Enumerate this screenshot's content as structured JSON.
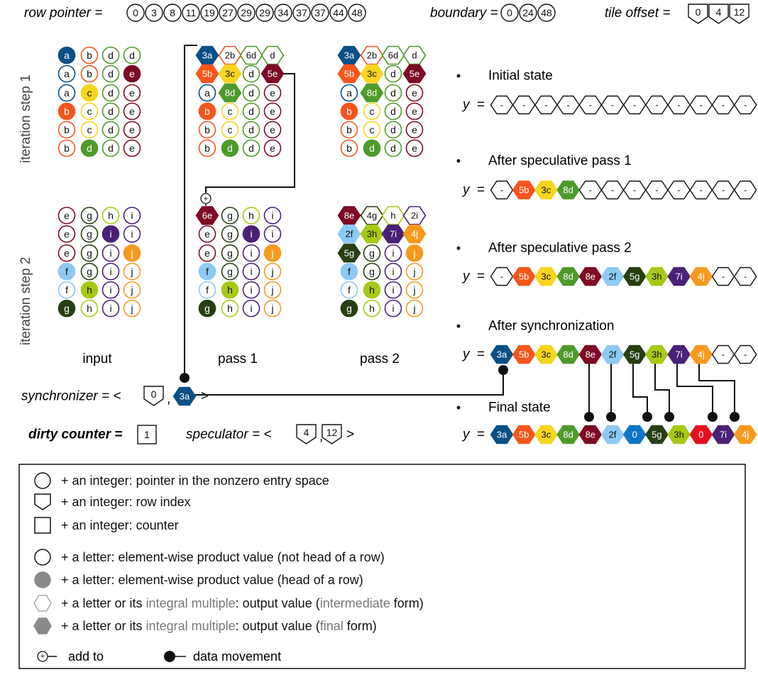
{
  "colors": {
    "a": "#0a4f86",
    "b": "#f4561d",
    "c": "#f8d51f",
    "d": "#4e9a2a",
    "e": "#7d0b25",
    "f": "#8ccaf4",
    "g": "#273f13",
    "h": "#a7c914",
    "i": "#4a2177",
    "j": "#f59a1f",
    "zero_final": "#0c76c9",
    "zero_red": "#e5101f",
    "gray": "#8a8a8a"
  },
  "header": {
    "row_pointer_label": "row pointer =",
    "row_pointer": [
      "0",
      "3",
      "8",
      "11",
      "19",
      "27",
      "29",
      "29",
      "34",
      "37",
      "37",
      "44",
      "48"
    ],
    "boundary_label": "boundary =",
    "boundary": [
      "0",
      "24",
      "48"
    ],
    "tile_offset_label": "tile offset =",
    "tile_offset": [
      "0",
      "4",
      "12"
    ]
  },
  "side_labels": {
    "step1": "iteration step 1",
    "step2": "iteration step 2"
  },
  "col_labels": {
    "input": "input",
    "pass1": "pass 1",
    "pass2": "pass 2"
  },
  "grids": {
    "input_step1": [
      [
        [
          "a",
          "H"
        ],
        [
          "b",
          "o"
        ],
        [
          "d",
          "o"
        ],
        [
          "d",
          "o"
        ]
      ],
      [
        [
          "a",
          "o"
        ],
        [
          "b",
          "o"
        ],
        [
          "d",
          "o"
        ],
        [
          "e",
          "H"
        ]
      ],
      [
        [
          "a",
          "o"
        ],
        [
          "c",
          "H"
        ],
        [
          "d",
          "o"
        ],
        [
          "e",
          "o"
        ]
      ],
      [
        [
          "b",
          "H"
        ],
        [
          "c",
          "o"
        ],
        [
          "d",
          "o"
        ],
        [
          "e",
          "o"
        ]
      ],
      [
        [
          "b",
          "o"
        ],
        [
          "c",
          "o"
        ],
        [
          "d",
          "o"
        ],
        [
          "e",
          "o"
        ]
      ],
      [
        [
          "b",
          "o"
        ],
        [
          "d",
          "H"
        ],
        [
          "d",
          "o"
        ],
        [
          "e",
          "o"
        ]
      ]
    ],
    "pass1_step1": [
      [
        [
          "3a",
          "F",
          "a"
        ],
        [
          "2b",
          "X",
          "b"
        ],
        [
          "6d",
          "X",
          "d"
        ],
        [
          "d",
          "X",
          "d"
        ]
      ],
      [
        [
          "5b",
          "F",
          "b"
        ],
        [
          "3c",
          "F",
          "c"
        ],
        [
          "d",
          "o"
        ],
        [
          "5e",
          "F",
          "e"
        ]
      ],
      [
        [
          "a",
          "o"
        ],
        [
          "8d",
          "F",
          "d"
        ],
        [
          "d",
          "o"
        ],
        [
          "e",
          "o"
        ]
      ],
      [
        [
          "b",
          "H"
        ],
        [
          "c",
          "o"
        ],
        [
          "d",
          "o"
        ],
        [
          "e",
          "o"
        ]
      ],
      [
        [
          "b",
          "o"
        ],
        [
          "c",
          "o"
        ],
        [
          "d",
          "o"
        ],
        [
          "e",
          "o"
        ]
      ],
      [
        [
          "b",
          "o"
        ],
        [
          "d",
          "H"
        ],
        [
          "d",
          "o"
        ],
        [
          "e",
          "o"
        ]
      ]
    ],
    "pass2_step1": [
      [
        [
          "3a",
          "F",
          "a"
        ],
        [
          "2b",
          "X",
          "b"
        ],
        [
          "6d",
          "X",
          "d"
        ],
        [
          "d",
          "X",
          "d"
        ]
      ],
      [
        [
          "5b",
          "F",
          "b"
        ],
        [
          "3c",
          "F",
          "c"
        ],
        [
          "d",
          "o"
        ],
        [
          "5e",
          "F",
          "e"
        ]
      ],
      [
        [
          "a",
          "o"
        ],
        [
          "8d",
          "F",
          "d"
        ],
        [
          "d",
          "o"
        ],
        [
          "e",
          "o"
        ]
      ],
      [
        [
          "b",
          "H"
        ],
        [
          "c",
          "o"
        ],
        [
          "d",
          "o"
        ],
        [
          "e",
          "o"
        ]
      ],
      [
        [
          "b",
          "o"
        ],
        [
          "c",
          "o"
        ],
        [
          "d",
          "o"
        ],
        [
          "e",
          "o"
        ]
      ],
      [
        [
          "b",
          "o"
        ],
        [
          "d",
          "H"
        ],
        [
          "d",
          "o"
        ],
        [
          "e",
          "o"
        ]
      ]
    ],
    "input_step2": [
      [
        [
          "e",
          "o"
        ],
        [
          "g",
          "o"
        ],
        [
          "h",
          "o"
        ],
        [
          "i",
          "o"
        ]
      ],
      [
        [
          "e",
          "o"
        ],
        [
          "g",
          "o"
        ],
        [
          "i",
          "H"
        ],
        [
          "i",
          "o"
        ]
      ],
      [
        [
          "e",
          "o"
        ],
        [
          "g",
          "o"
        ],
        [
          "i",
          "o"
        ],
        [
          "j",
          "H"
        ]
      ],
      [
        [
          "f",
          "H"
        ],
        [
          "g",
          "o"
        ],
        [
          "i",
          "o"
        ],
        [
          "j",
          "o"
        ]
      ],
      [
        [
          "f",
          "o"
        ],
        [
          "h",
          "H"
        ],
        [
          "i",
          "o"
        ],
        [
          "j",
          "o"
        ]
      ],
      [
        [
          "g",
          "H"
        ],
        [
          "h",
          "o"
        ],
        [
          "i",
          "o"
        ],
        [
          "j",
          "o"
        ]
      ]
    ],
    "pass1_step2": [
      [
        [
          "6e",
          "F",
          "e"
        ],
        [
          "g",
          "o"
        ],
        [
          "h",
          "o"
        ],
        [
          "i",
          "o"
        ]
      ],
      [
        [
          "e",
          "o"
        ],
        [
          "g",
          "o"
        ],
        [
          "i",
          "H"
        ],
        [
          "i",
          "o"
        ]
      ],
      [
        [
          "e",
          "o"
        ],
        [
          "g",
          "o"
        ],
        [
          "i",
          "o"
        ],
        [
          "j",
          "H"
        ]
      ],
      [
        [
          "f",
          "H"
        ],
        [
          "g",
          "o"
        ],
        [
          "i",
          "o"
        ],
        [
          "j",
          "o"
        ]
      ],
      [
        [
          "f",
          "o"
        ],
        [
          "h",
          "H"
        ],
        [
          "i",
          "o"
        ],
        [
          "j",
          "o"
        ]
      ],
      [
        [
          "g",
          "H"
        ],
        [
          "h",
          "o"
        ],
        [
          "i",
          "o"
        ],
        [
          "j",
          "o"
        ]
      ]
    ],
    "pass2_step2": [
      [
        [
          "8e",
          "F",
          "e"
        ],
        [
          "4g",
          "X",
          "g"
        ],
        [
          "h",
          "X",
          "h"
        ],
        [
          "2i",
          "X",
          "i"
        ]
      ],
      [
        [
          "2f",
          "F",
          "f"
        ],
        [
          "3h",
          "F",
          "h"
        ],
        [
          "7i",
          "F",
          "i"
        ],
        [
          "4j",
          "F",
          "j"
        ]
      ],
      [
        [
          "5g",
          "F",
          "g"
        ],
        [
          "g",
          "o"
        ],
        [
          "i",
          "o"
        ],
        [
          "j",
          "H"
        ]
      ],
      [
        [
          "f",
          "H"
        ],
        [
          "g",
          "o"
        ],
        [
          "i",
          "o"
        ],
        [
          "j",
          "o"
        ]
      ],
      [
        [
          "f",
          "o"
        ],
        [
          "h",
          "H"
        ],
        [
          "i",
          "o"
        ],
        [
          "j",
          "o"
        ]
      ],
      [
        [
          "g",
          "H"
        ],
        [
          "h",
          "o"
        ],
        [
          "i",
          "o"
        ],
        [
          "j",
          "o"
        ]
      ]
    ]
  },
  "states": [
    {
      "title": "Initial state",
      "y_label": "y",
      "cells": [
        [
          "-",
          "X",
          "k"
        ],
        [
          "-",
          "X",
          "k"
        ],
        [
          "-",
          "X",
          "k"
        ],
        [
          "-",
          "X",
          "k"
        ],
        [
          "-",
          "X",
          "k"
        ],
        [
          "-",
          "X",
          "k"
        ],
        [
          "-",
          "X",
          "k"
        ],
        [
          "-",
          "X",
          "k"
        ],
        [
          "-",
          "X",
          "k"
        ],
        [
          "-",
          "X",
          "k"
        ],
        [
          "-",
          "X",
          "k"
        ],
        [
          "-",
          "X",
          "k"
        ]
      ]
    },
    {
      "title": "After speculative pass 1",
      "y_label": "y",
      "cells": [
        [
          "-",
          "X",
          "k"
        ],
        [
          "5b",
          "F",
          "b"
        ],
        [
          "3c",
          "F",
          "c"
        ],
        [
          "8d",
          "F",
          "d"
        ],
        [
          "-",
          "X",
          "k"
        ],
        [
          "-",
          "X",
          "k"
        ],
        [
          "-",
          "X",
          "k"
        ],
        [
          "-",
          "X",
          "k"
        ],
        [
          "-",
          "X",
          "k"
        ],
        [
          "-",
          "X",
          "k"
        ],
        [
          "-",
          "X",
          "k"
        ],
        [
          "-",
          "X",
          "k"
        ]
      ]
    },
    {
      "title": "After speculative pass 2",
      "y_label": "y",
      "cells": [
        [
          "-",
          "X",
          "k"
        ],
        [
          "5b",
          "F",
          "b"
        ],
        [
          "3c",
          "F",
          "c"
        ],
        [
          "8d",
          "F",
          "d"
        ],
        [
          "8e",
          "F",
          "e"
        ],
        [
          "2f",
          "F",
          "f"
        ],
        [
          "5g",
          "F",
          "g"
        ],
        [
          "3h",
          "F",
          "h"
        ],
        [
          "7i",
          "F",
          "i"
        ],
        [
          "4j",
          "F",
          "j"
        ],
        [
          "-",
          "X",
          "k"
        ],
        [
          "-",
          "X",
          "k"
        ]
      ]
    },
    {
      "title": "After synchronization",
      "y_label": "y",
      "cells": [
        [
          "3a",
          "F",
          "a"
        ],
        [
          "5b",
          "F",
          "b"
        ],
        [
          "3c",
          "F",
          "c"
        ],
        [
          "8d",
          "F",
          "d"
        ],
        [
          "8e",
          "F",
          "e"
        ],
        [
          "2f",
          "F",
          "f"
        ],
        [
          "5g",
          "F",
          "g"
        ],
        [
          "3h",
          "F",
          "h"
        ],
        [
          "7i",
          "F",
          "i"
        ],
        [
          "4j",
          "F",
          "j"
        ],
        [
          "-",
          "X",
          "k"
        ],
        [
          "-",
          "X",
          "k"
        ]
      ]
    },
    {
      "title": "Final state",
      "y_label": "y",
      "cells": [
        [
          "3a",
          "F",
          "a"
        ],
        [
          "5b",
          "F",
          "b"
        ],
        [
          "3c",
          "F",
          "c"
        ],
        [
          "8d",
          "F",
          "d"
        ],
        [
          "8e",
          "F",
          "e"
        ],
        [
          "2f",
          "F",
          "f"
        ],
        [
          "0",
          "F",
          "zero_final"
        ],
        [
          "5g",
          "F",
          "g"
        ],
        [
          "3h",
          "F",
          "h"
        ],
        [
          "0",
          "F",
          "zero_red"
        ],
        [
          "7i",
          "F",
          "i"
        ],
        [
          "4j",
          "F",
          "j"
        ]
      ]
    }
  ],
  "bullet": "•",
  "synchronizer": {
    "label": "synchronizer = <",
    "row_index": "0",
    "comma": ",",
    "value": "3a",
    "close": ">"
  },
  "dirty_counter": {
    "label": "dirty counter =",
    "value": "1"
  },
  "speculator": {
    "label": "speculator = <",
    "a": "4",
    "comma": ",",
    "b": "12",
    "close": ">"
  },
  "plus_symbol": "+",
  "legend": {
    "items": [
      {
        "icon": "circle",
        "prefix": "+ an integer: pointer in the nonzero entry space",
        "em": "",
        "suffix": ""
      },
      {
        "icon": "pentagon",
        "prefix": "+ an integer: row index",
        "em": "",
        "suffix": ""
      },
      {
        "icon": "square",
        "prefix": "+ an integer: counter",
        "em": "",
        "suffix": ""
      },
      {
        "icon": "circle",
        "prefix": "+ a letter: element-wise product value (not head of a row)",
        "em": "",
        "suffix": ""
      },
      {
        "icon": "circle-filled",
        "prefix": "+ a letter: element-wise product value (head of a row)",
        "em": "",
        "suffix": ""
      },
      {
        "icon": "hex-outline",
        "prefix": "+ a letter or its ",
        "em": "integral multiple",
        "suffix": ": output value (",
        "em2": "intermediate",
        "suffix2": " form)"
      },
      {
        "icon": "hex-filled",
        "prefix": "+ a letter or its ",
        "em": "integral multiple",
        "suffix": ": output value (",
        "em2": "final",
        "suffix2": " form)"
      }
    ],
    "add_to": "add to",
    "data_movement": "data movement"
  }
}
